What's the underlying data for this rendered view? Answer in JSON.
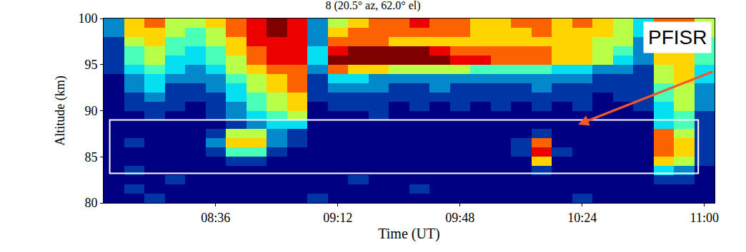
{
  "chart_data": {
    "type": "heatmap",
    "title": "8 (20.5° az, 62.0° el)",
    "x_label": "Time (UT)",
    "y_label": "Altitude (km)",
    "annotation": "PFISR",
    "color": "Jet",
    "x": [
      8.1,
      8.2,
      8.3,
      8.4,
      8.5,
      8.6,
      8.7,
      8.8,
      8.9,
      9.0,
      9.1,
      9.2,
      9.3,
      9.4,
      9.5,
      9.6,
      9.7,
      9.8,
      9.9,
      10.0,
      10.1,
      10.2,
      10.3,
      10.4,
      10.5,
      10.6,
      10.7,
      10.8,
      10.9,
      11.0
    ],
    "y": [
      80.5,
      81.5,
      82.5,
      83.5,
      84.5,
      85.5,
      86.5,
      87.5,
      88.5,
      89.5,
      90.5,
      91.5,
      92.5,
      93.5,
      94.5,
      95.5,
      96.5,
      97.5,
      98.5,
      99.5
    ],
    "z": [
      [
        1,
        1,
        2,
        1,
        1,
        1,
        1,
        1,
        1,
        1,
        2,
        1,
        1,
        1,
        1,
        1,
        1,
        1,
        1,
        1,
        1,
        1,
        1,
        2,
        1,
        1,
        1,
        1,
        1,
        1
      ],
      [
        1,
        2,
        1,
        1,
        1,
        1,
        1,
        1,
        1,
        1,
        1,
        1,
        1,
        1,
        1,
        2,
        1,
        1,
        1,
        1,
        1,
        1,
        1,
        1,
        1,
        1,
        1,
        1,
        1,
        1
      ],
      [
        1,
        1,
        1,
        2,
        1,
        1,
        1,
        1,
        1,
        1,
        1,
        1,
        2,
        1,
        1,
        1,
        1,
        1,
        1,
        1,
        1,
        1,
        1,
        1,
        1,
        1,
        1,
        2,
        2,
        1
      ],
      [
        1,
        2,
        1,
        1,
        1,
        1,
        1,
        1,
        1,
        1,
        1,
        1,
        1,
        1,
        1,
        1,
        1,
        1,
        1,
        1,
        1,
        2,
        1,
        1,
        1,
        1,
        1,
        4,
        3,
        1
      ],
      [
        1,
        1,
        1,
        1,
        1,
        1,
        2,
        2,
        1,
        1,
        1,
        1,
        1,
        1,
        1,
        1,
        1,
        1,
        1,
        1,
        1,
        7,
        1,
        1,
        1,
        1,
        1,
        7,
        6,
        2
      ],
      [
        1,
        1,
        1,
        1,
        1,
        2,
        5,
        5,
        2,
        1,
        1,
        1,
        1,
        1,
        1,
        1,
        1,
        1,
        1,
        1,
        2,
        9,
        2,
        1,
        1,
        1,
        1,
        8,
        7,
        2
      ],
      [
        1,
        2,
        1,
        1,
        1,
        3,
        7,
        7,
        3,
        2,
        1,
        1,
        1,
        1,
        1,
        1,
        1,
        1,
        1,
        1,
        2,
        8,
        1,
        1,
        1,
        1,
        1,
        8,
        7,
        2
      ],
      [
        1,
        1,
        1,
        1,
        1,
        2,
        6,
        6,
        3,
        2,
        1,
        1,
        1,
        1,
        1,
        1,
        1,
        1,
        1,
        1,
        1,
        2,
        1,
        1,
        1,
        1,
        1,
        8,
        6,
        2
      ],
      [
        1,
        1,
        1,
        1,
        1,
        1,
        2,
        3,
        4,
        4,
        1,
        1,
        1,
        1,
        1,
        1,
        1,
        1,
        1,
        1,
        1,
        1,
        1,
        1,
        1,
        1,
        1,
        4,
        5,
        2
      ],
      [
        1,
        1,
        2,
        1,
        1,
        2,
        3,
        4,
        5,
        6,
        1,
        1,
        1,
        2,
        1,
        1,
        1,
        1,
        1,
        1,
        1,
        1,
        1,
        1,
        1,
        1,
        1,
        4,
        5,
        2
      ],
      [
        1,
        2,
        2,
        2,
        1,
        2,
        3,
        5,
        6,
        7,
        1,
        2,
        2,
        2,
        1,
        2,
        1,
        2,
        1,
        2,
        1,
        2,
        1,
        2,
        1,
        1,
        2,
        4,
        6,
        3
      ],
      [
        1,
        2,
        3,
        2,
        2,
        2,
        4,
        5,
        6,
        7,
        2,
        2,
        2,
        2,
        2,
        2,
        2,
        2,
        2,
        2,
        2,
        2,
        2,
        2,
        1,
        2,
        2,
        5,
        6,
        3
      ],
      [
        1,
        3,
        4,
        2,
        2,
        3,
        4,
        6,
        7,
        8,
        2,
        3,
        3,
        3,
        2,
        2,
        3,
        2,
        2,
        2,
        2,
        3,
        2,
        2,
        2,
        2,
        2,
        5,
        6,
        3
      ],
      [
        1,
        3,
        4,
        3,
        3,
        3,
        5,
        6,
        7,
        8,
        2,
        4,
        4,
        3,
        3,
        3,
        3,
        3,
        3,
        3,
        3,
        3,
        3,
        3,
        2,
        2,
        2,
        6,
        7,
        4
      ],
      [
        2,
        4,
        5,
        4,
        3,
        4,
        6,
        7,
        8,
        8,
        3,
        8,
        7,
        7,
        6,
        6,
        6,
        6,
        5,
        5,
        5,
        5,
        4,
        4,
        3,
        3,
        2,
        6,
        7,
        4
      ],
      [
        2,
        5,
        6,
        4,
        4,
        5,
        6,
        8,
        9,
        9,
        4,
        10,
        10,
        10,
        10,
        10,
        10,
        9,
        9,
        8,
        8,
        8,
        7,
        7,
        6,
        4,
        3,
        7,
        7,
        5
      ],
      [
        2,
        5,
        6,
        5,
        4,
        5,
        7,
        8,
        9,
        9,
        4,
        9,
        10,
        10,
        10,
        10,
        9,
        8,
        8,
        8,
        8,
        8,
        7,
        7,
        6,
        5,
        3,
        7,
        7,
        5
      ],
      [
        2,
        6,
        7,
        5,
        5,
        6,
        7,
        9,
        9,
        9,
        3,
        8,
        8,
        8,
        7,
        7,
        7,
        7,
        7,
        7,
        7,
        7,
        7,
        7,
        6,
        6,
        3,
        7,
        8,
        5
      ],
      [
        3,
        7,
        7,
        6,
        5,
        6,
        8,
        9,
        10,
        9,
        3,
        7,
        8,
        8,
        8,
        8,
        8,
        8,
        7,
        7,
        7,
        8,
        7,
        7,
        7,
        6,
        4,
        8,
        8,
        6
      ],
      [
        3,
        7,
        8,
        6,
        6,
        7,
        8,
        9,
        10,
        9,
        3,
        6,
        7,
        8,
        8,
        9,
        8,
        8,
        7,
        7,
        8,
        8,
        7,
        8,
        7,
        6,
        4,
        8,
        8,
        6
      ]
    ],
    "xlim": [
      8.05,
      11.05
    ],
    "xticks": [
      {
        "value": 8.6,
        "label": "08:36"
      },
      {
        "value": 9.2,
        "label": "09:12"
      },
      {
        "value": 9.8,
        "label": "09:48"
      },
      {
        "value": 10.4,
        "label": "10:24"
      },
      {
        "value": 11.0,
        "label": "11:00"
      }
    ],
    "ylim": [
      80,
      100
    ],
    "yticks": [
      80,
      85,
      90,
      95,
      100
    ],
    "box": {
      "x": [
        8.08,
        10.97
      ],
      "y": [
        83.2,
        89.0
      ]
    },
    "arrow": {
      "x": 10.38,
      "y": 88.5
    },
    "grid": false
  }
}
